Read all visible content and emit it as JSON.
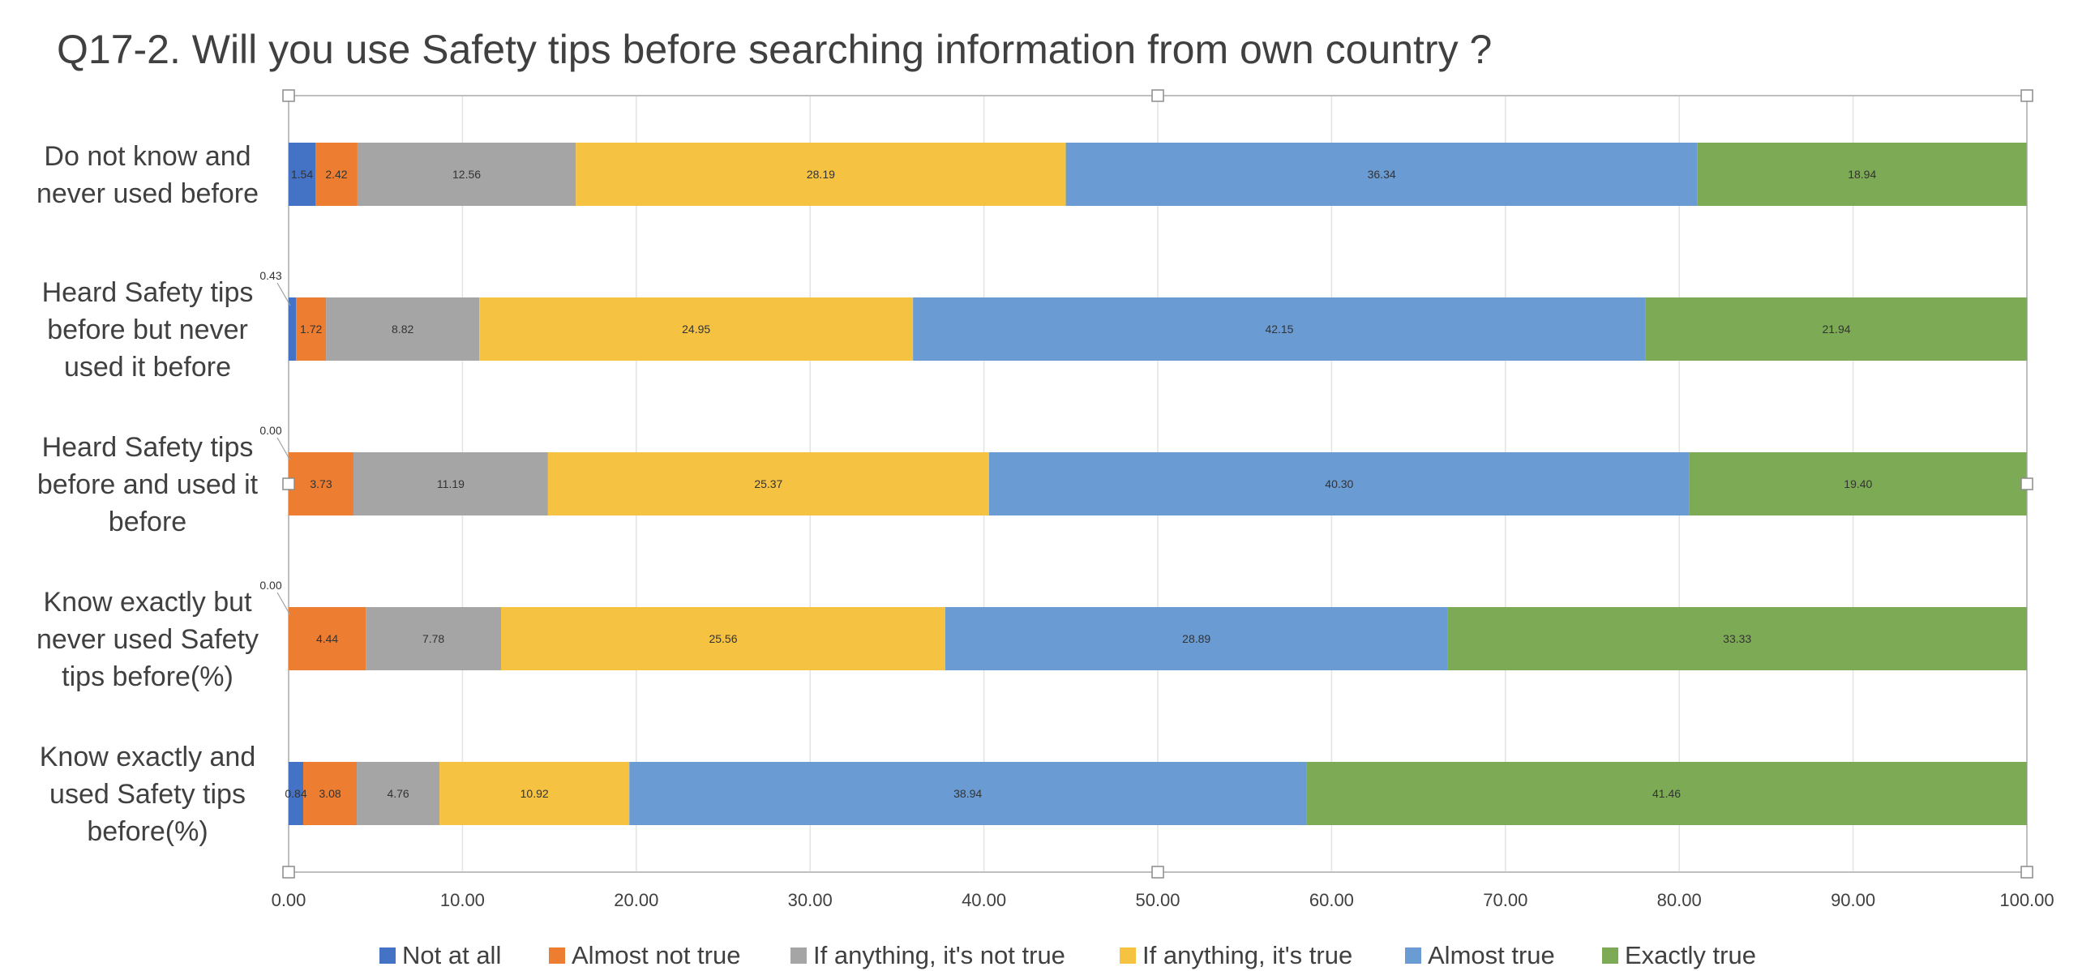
{
  "chart_data": {
    "type": "bar",
    "orientation": "horizontal",
    "stacked": true,
    "title": "Q17-2. Will you use Safety tips before searching information from own country ?",
    "xlabel": "",
    "ylabel": "",
    "xlim": [
      0,
      100
    ],
    "x_ticks": [
      "0.00",
      "10.00",
      "20.00",
      "30.00",
      "40.00",
      "50.00",
      "60.00",
      "70.00",
      "80.00",
      "90.00",
      "100.00"
    ],
    "grid": true,
    "legend_position": "bottom",
    "categories": [
      [
        "Do not know and",
        "never used before"
      ],
      [
        "Heard Safety tips",
        "before but never",
        "used it before"
      ],
      [
        "Heard Safety tips",
        "before and used it",
        "before"
      ],
      [
        "Know exactly but",
        "never used Safety",
        "tips before(%)"
      ],
      [
        "Know exactly and",
        "used Safety tips",
        "before(%)"
      ]
    ],
    "series": [
      {
        "name": "Not at all",
        "color": "#4472C4",
        "values": [
          1.54,
          0.43,
          0.0,
          0.0,
          0.84
        ],
        "labels": [
          "1.54",
          "0.43",
          "0.00",
          "0.00",
          "0.84"
        ]
      },
      {
        "name": "Almost not true",
        "color": "#ED7D31",
        "values": [
          2.42,
          1.72,
          3.73,
          4.44,
          3.08
        ],
        "labels": [
          "2.42",
          "1.72",
          "3.73",
          "4.44",
          "3.08"
        ]
      },
      {
        "name": "If anything, it's not true",
        "color": "#A5A5A5",
        "values": [
          12.56,
          8.82,
          11.19,
          7.78,
          4.76
        ],
        "labels": [
          "12.56",
          "8.82",
          "11.19",
          "7.78",
          "4.76"
        ]
      },
      {
        "name": "If anything, it's true",
        "color": "#F6C242",
        "values": [
          28.19,
          24.95,
          25.37,
          25.56,
          10.92
        ],
        "labels": [
          "28.19",
          "24.95",
          "25.37",
          "25.56",
          "10.92"
        ]
      },
      {
        "name": "Almost true",
        "color": "#6A9BD2",
        "values": [
          36.34,
          42.15,
          40.3,
          28.89,
          38.94
        ],
        "labels": [
          "36.34",
          "42.15",
          "40.30",
          "28.89",
          "38.94"
        ]
      },
      {
        "name": "Exactly true",
        "color": "#7DAA55",
        "values": [
          18.94,
          21.94,
          19.4,
          33.33,
          41.46
        ],
        "labels": [
          "18.94",
          "21.94",
          "19.40",
          "33.33",
          "41.46"
        ]
      }
    ]
  }
}
